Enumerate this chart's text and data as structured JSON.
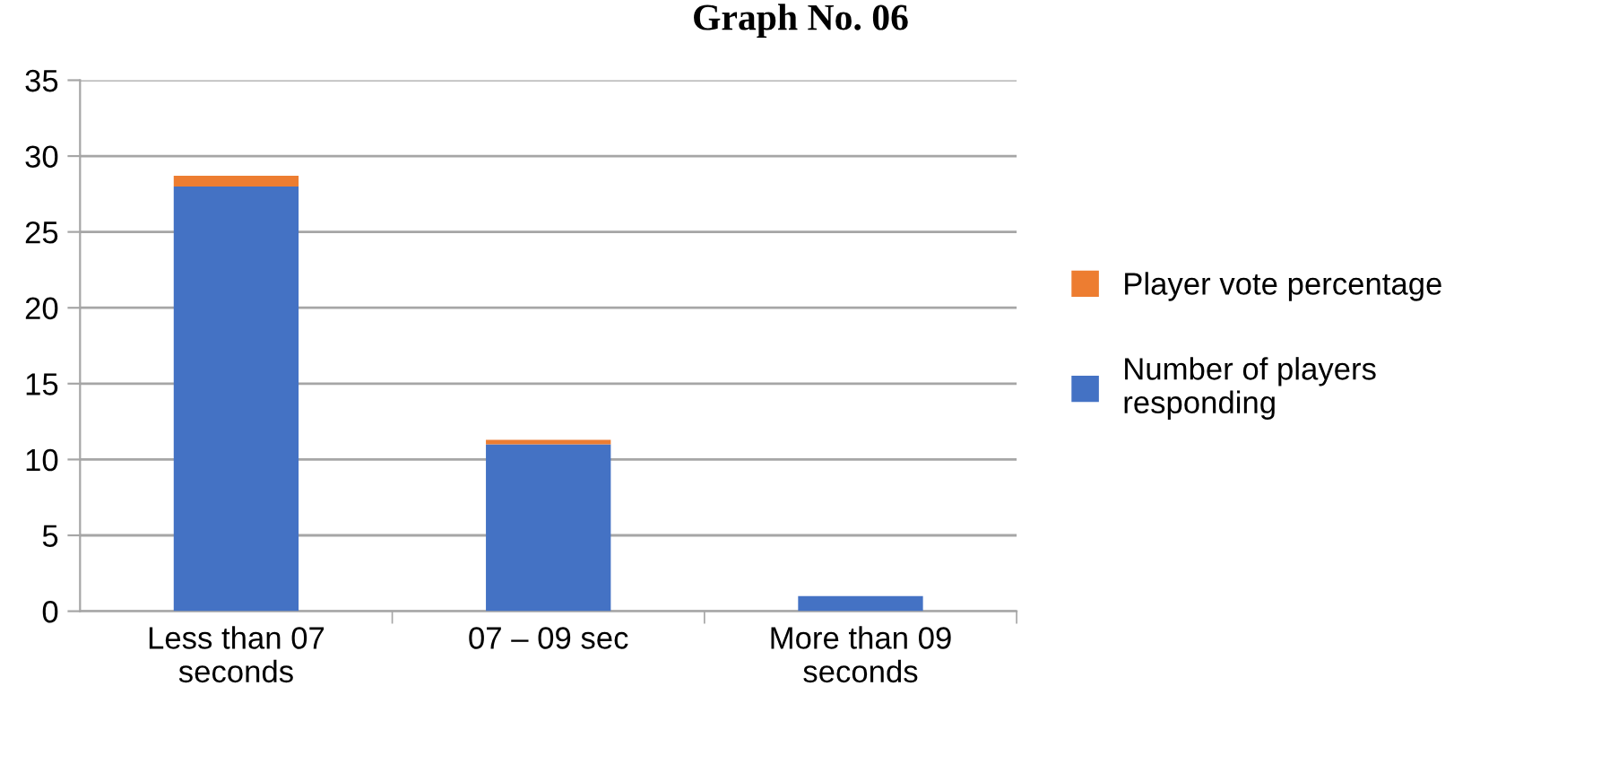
{
  "chart_data": {
    "type": "bar",
    "title": "Graph No. 06",
    "stacked": true,
    "categories": [
      "Less than 07\nseconds",
      "07 – 09 sec",
      "More than 09\nseconds"
    ],
    "series": [
      {
        "name": "Number of players\nresponding",
        "color": "#4472c4",
        "values": [
          28,
          11,
          1
        ]
      },
      {
        "name": "Player vote percentage",
        "color": "#ed7d31",
        "values": [
          0.7,
          0.3,
          0
        ]
      }
    ],
    "ylim": [
      0,
      35
    ],
    "yticks": [
      0,
      5,
      10,
      15,
      20,
      25,
      30,
      35
    ],
    "grid": "y",
    "legend": "right"
  }
}
